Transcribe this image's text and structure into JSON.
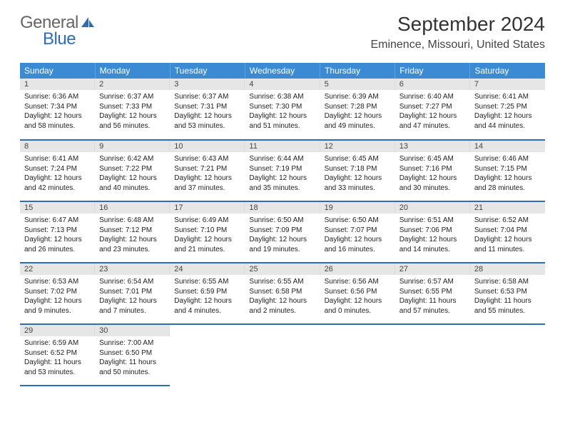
{
  "brand": {
    "general": "General",
    "blue": "Blue"
  },
  "title": "September 2024",
  "location": "Eminence, Missouri, United States",
  "colors": {
    "header_bg": "#3b8bd4",
    "header_text": "#ffffff",
    "daynum_bg": "#e6e6e6",
    "rule": "#2d6db4",
    "brand_blue": "#2d6db4"
  },
  "weekdays": [
    "Sunday",
    "Monday",
    "Tuesday",
    "Wednesday",
    "Thursday",
    "Friday",
    "Saturday"
  ],
  "days": [
    {
      "n": "1",
      "sr": "6:36 AM",
      "ss": "7:34 PM",
      "dl": "12 hours and 58 minutes."
    },
    {
      "n": "2",
      "sr": "6:37 AM",
      "ss": "7:33 PM",
      "dl": "12 hours and 56 minutes."
    },
    {
      "n": "3",
      "sr": "6:37 AM",
      "ss": "7:31 PM",
      "dl": "12 hours and 53 minutes."
    },
    {
      "n": "4",
      "sr": "6:38 AM",
      "ss": "7:30 PM",
      "dl": "12 hours and 51 minutes."
    },
    {
      "n": "5",
      "sr": "6:39 AM",
      "ss": "7:28 PM",
      "dl": "12 hours and 49 minutes."
    },
    {
      "n": "6",
      "sr": "6:40 AM",
      "ss": "7:27 PM",
      "dl": "12 hours and 47 minutes."
    },
    {
      "n": "7",
      "sr": "6:41 AM",
      "ss": "7:25 PM",
      "dl": "12 hours and 44 minutes."
    },
    {
      "n": "8",
      "sr": "6:41 AM",
      "ss": "7:24 PM",
      "dl": "12 hours and 42 minutes."
    },
    {
      "n": "9",
      "sr": "6:42 AM",
      "ss": "7:22 PM",
      "dl": "12 hours and 40 minutes."
    },
    {
      "n": "10",
      "sr": "6:43 AM",
      "ss": "7:21 PM",
      "dl": "12 hours and 37 minutes."
    },
    {
      "n": "11",
      "sr": "6:44 AM",
      "ss": "7:19 PM",
      "dl": "12 hours and 35 minutes."
    },
    {
      "n": "12",
      "sr": "6:45 AM",
      "ss": "7:18 PM",
      "dl": "12 hours and 33 minutes."
    },
    {
      "n": "13",
      "sr": "6:45 AM",
      "ss": "7:16 PM",
      "dl": "12 hours and 30 minutes."
    },
    {
      "n": "14",
      "sr": "6:46 AM",
      "ss": "7:15 PM",
      "dl": "12 hours and 28 minutes."
    },
    {
      "n": "15",
      "sr": "6:47 AM",
      "ss": "7:13 PM",
      "dl": "12 hours and 26 minutes."
    },
    {
      "n": "16",
      "sr": "6:48 AM",
      "ss": "7:12 PM",
      "dl": "12 hours and 23 minutes."
    },
    {
      "n": "17",
      "sr": "6:49 AM",
      "ss": "7:10 PM",
      "dl": "12 hours and 21 minutes."
    },
    {
      "n": "18",
      "sr": "6:50 AM",
      "ss": "7:09 PM",
      "dl": "12 hours and 19 minutes."
    },
    {
      "n": "19",
      "sr": "6:50 AM",
      "ss": "7:07 PM",
      "dl": "12 hours and 16 minutes."
    },
    {
      "n": "20",
      "sr": "6:51 AM",
      "ss": "7:06 PM",
      "dl": "12 hours and 14 minutes."
    },
    {
      "n": "21",
      "sr": "6:52 AM",
      "ss": "7:04 PM",
      "dl": "12 hours and 11 minutes."
    },
    {
      "n": "22",
      "sr": "6:53 AM",
      "ss": "7:02 PM",
      "dl": "12 hours and 9 minutes."
    },
    {
      "n": "23",
      "sr": "6:54 AM",
      "ss": "7:01 PM",
      "dl": "12 hours and 7 minutes."
    },
    {
      "n": "24",
      "sr": "6:55 AM",
      "ss": "6:59 PM",
      "dl": "12 hours and 4 minutes."
    },
    {
      "n": "25",
      "sr": "6:55 AM",
      "ss": "6:58 PM",
      "dl": "12 hours and 2 minutes."
    },
    {
      "n": "26",
      "sr": "6:56 AM",
      "ss": "6:56 PM",
      "dl": "12 hours and 0 minutes."
    },
    {
      "n": "27",
      "sr": "6:57 AM",
      "ss": "6:55 PM",
      "dl": "11 hours and 57 minutes."
    },
    {
      "n": "28",
      "sr": "6:58 AM",
      "ss": "6:53 PM",
      "dl": "11 hours and 55 minutes."
    },
    {
      "n": "29",
      "sr": "6:59 AM",
      "ss": "6:52 PM",
      "dl": "11 hours and 53 minutes."
    },
    {
      "n": "30",
      "sr": "7:00 AM",
      "ss": "6:50 PM",
      "dl": "11 hours and 50 minutes."
    }
  ],
  "labels": {
    "sunrise": "Sunrise:",
    "sunset": "Sunset:",
    "daylight": "Daylight:"
  },
  "layout": {
    "start_weekday": 0,
    "rows": 5,
    "cols": 7
  }
}
